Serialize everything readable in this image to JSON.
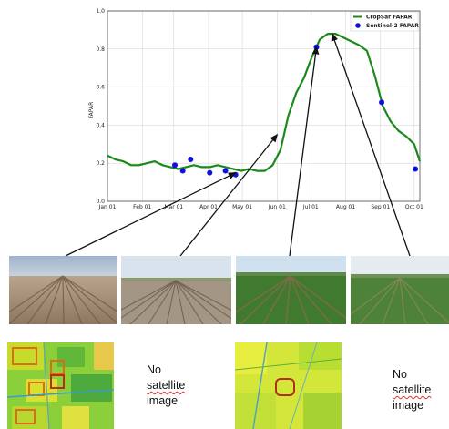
{
  "chart_data": {
    "type": "line",
    "ylabel": "FAPAR",
    "ylim": [
      0.0,
      1.0
    ],
    "yticks": [
      "0.0",
      "0.2",
      "0.4",
      "0.6",
      "0.8",
      "1.0"
    ],
    "grid": true,
    "legend_position": "top-right",
    "xticks": [
      {
        "date": "2019-01-01",
        "label": "Jan 01"
      },
      {
        "date": "2019-02-01",
        "label": "Feb 01"
      },
      {
        "date": "2019-03-01",
        "label": "Mar 01"
      },
      {
        "date": "2019-04-01",
        "label": "Apr 01"
      },
      {
        "date": "2019-05-01",
        "label": "May 01"
      },
      {
        "date": "2019-06-01",
        "label": "Jun 01"
      },
      {
        "date": "2019-07-01",
        "label": "Jul 01"
      },
      {
        "date": "2019-08-01",
        "label": "Aug 01"
      },
      {
        "date": "2019-09-01",
        "label": "Sep 01"
      },
      {
        "date": "2019-10-01",
        "label": "Oct 01"
      }
    ],
    "xlim": [
      "2019-01-01",
      "2019-10-06"
    ],
    "series": [
      {
        "name": "CropSar FAPAR",
        "kind": "line",
        "color": "#1a8a1a",
        "points": [
          [
            "2019-01-01",
            0.24
          ],
          [
            "2019-01-08",
            0.22
          ],
          [
            "2019-01-15",
            0.21
          ],
          [
            "2019-01-22",
            0.19
          ],
          [
            "2019-01-29",
            0.19
          ],
          [
            "2019-02-05",
            0.2
          ],
          [
            "2019-02-12",
            0.21
          ],
          [
            "2019-02-19",
            0.19
          ],
          [
            "2019-02-26",
            0.18
          ],
          [
            "2019-03-05",
            0.17
          ],
          [
            "2019-03-12",
            0.18
          ],
          [
            "2019-03-19",
            0.19
          ],
          [
            "2019-03-26",
            0.18
          ],
          [
            "2019-04-02",
            0.18
          ],
          [
            "2019-04-09",
            0.19
          ],
          [
            "2019-04-16",
            0.18
          ],
          [
            "2019-04-23",
            0.17
          ],
          [
            "2019-04-30",
            0.16
          ],
          [
            "2019-05-07",
            0.17
          ],
          [
            "2019-05-14",
            0.16
          ],
          [
            "2019-05-21",
            0.16
          ],
          [
            "2019-05-28",
            0.19
          ],
          [
            "2019-06-04",
            0.27
          ],
          [
            "2019-06-11",
            0.45
          ],
          [
            "2019-06-18",
            0.57
          ],
          [
            "2019-06-25",
            0.65
          ],
          [
            "2019-07-02",
            0.76
          ],
          [
            "2019-07-09",
            0.85
          ],
          [
            "2019-07-16",
            0.88
          ],
          [
            "2019-07-23",
            0.88
          ],
          [
            "2019-07-30",
            0.86
          ],
          [
            "2019-08-06",
            0.84
          ],
          [
            "2019-08-13",
            0.82
          ],
          [
            "2019-08-20",
            0.79
          ],
          [
            "2019-08-27",
            0.66
          ],
          [
            "2019-09-03",
            0.5
          ],
          [
            "2019-09-10",
            0.42
          ],
          [
            "2019-09-17",
            0.37
          ],
          [
            "2019-09-24",
            0.34
          ],
          [
            "2019-10-01",
            0.3
          ],
          [
            "2019-10-06",
            0.21
          ]
        ]
      },
      {
        "name": "Sentinel-2 FAPAR",
        "kind": "scatter",
        "color": "#1010e0",
        "points": [
          [
            "2019-03-02",
            0.19
          ],
          [
            "2019-03-09",
            0.16
          ],
          [
            "2019-03-16",
            0.22
          ],
          [
            "2019-04-02",
            0.15
          ],
          [
            "2019-04-16",
            0.16
          ],
          [
            "2019-04-25",
            0.14
          ],
          [
            "2019-07-06",
            0.81
          ],
          [
            "2019-09-02",
            0.52
          ],
          [
            "2019-10-02",
            0.17
          ]
        ]
      }
    ],
    "annotations": [
      {
        "from": "photo-1",
        "to_date": "2019-04-25",
        "to_value": 0.15
      },
      {
        "from": "photo-2",
        "to_date": "2019-06-01",
        "to_value": 0.35
      },
      {
        "from": "photo-3",
        "to_date": "2019-07-06",
        "to_value": 0.81
      },
      {
        "from": "photo-4",
        "to_date": "2019-07-20",
        "to_value": 0.88
      }
    ]
  },
  "photos": [
    "bare-soil-field",
    "ridged-soil-field",
    "young-crop-rows",
    "dense-crop-rows"
  ],
  "maps": [
    {
      "kind": "satellite-fapar-map",
      "note": null
    },
    {
      "kind": "no-image",
      "note": [
        "No",
        "satellite",
        "image"
      ]
    },
    {
      "kind": "satellite-fapar-map",
      "note": null
    },
    {
      "kind": "no-image",
      "note": [
        "No",
        "satellite",
        "image"
      ]
    }
  ]
}
